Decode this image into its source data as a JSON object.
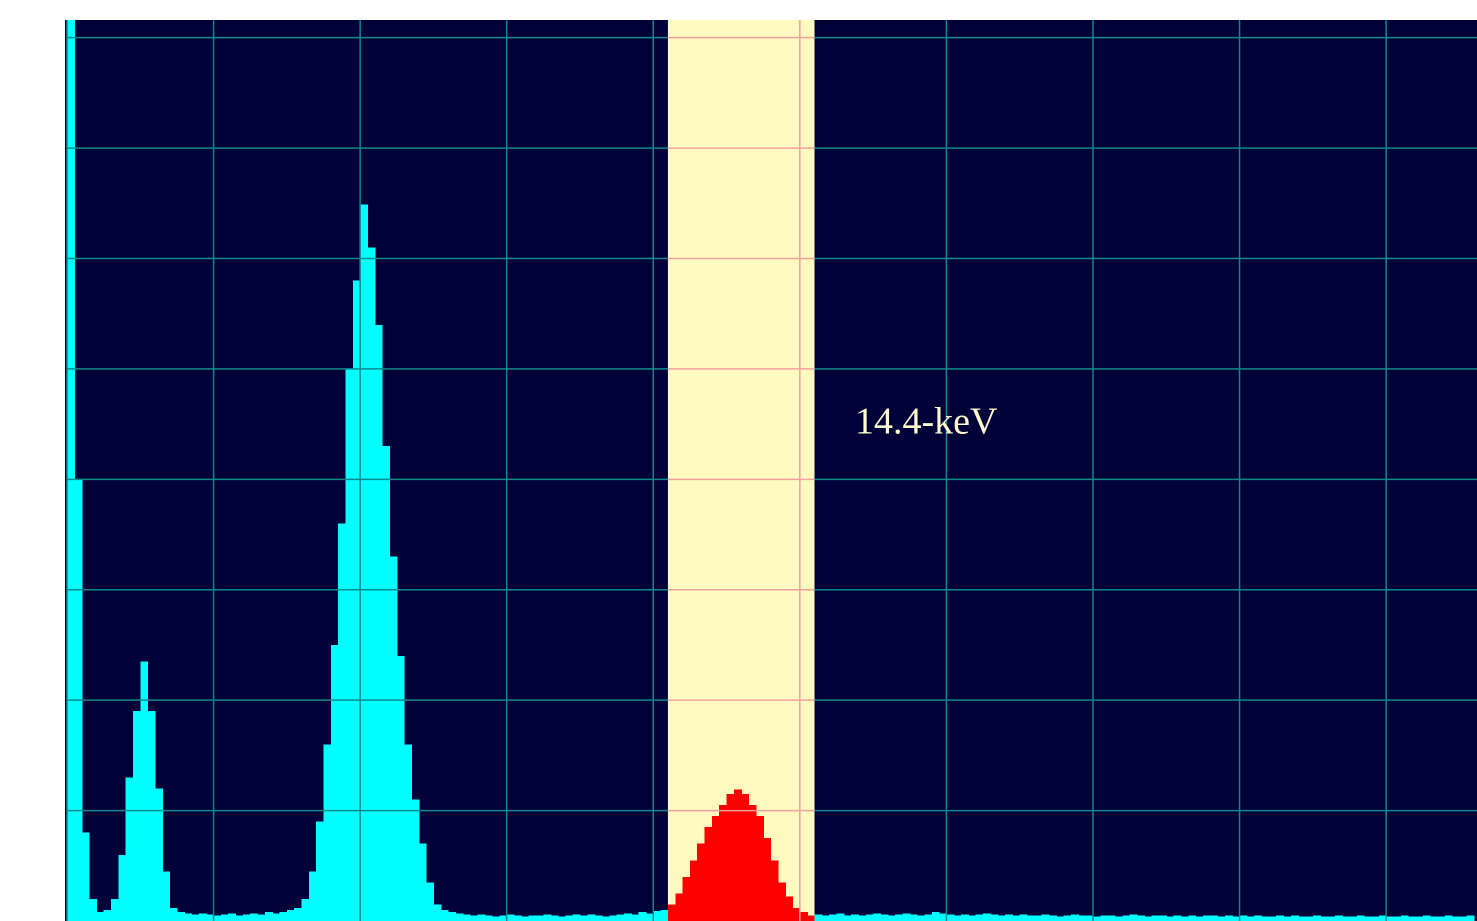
{
  "chart_data": {
    "type": "histogram",
    "bins": [
      0,
      0.05,
      0.1,
      0.15,
      0.2,
      0.25,
      0.3,
      0.35,
      0.4,
      0.45,
      0.5,
      0.55,
      0.6,
      0.65,
      0.7,
      0.75,
      0.8,
      0.85,
      0.9,
      0.95,
      1,
      1.05,
      1.1,
      1.15,
      1.2,
      1.25,
      1.3,
      1.35,
      1.4,
      1.45,
      1.5,
      1.55,
      1.6,
      1.65,
      1.7,
      1.75,
      1.8,
      1.85,
      1.9,
      1.95,
      2,
      2.05,
      2.1,
      2.15,
      2.2,
      2.25,
      2.3,
      2.35,
      2.4,
      2.45,
      2.5,
      2.55,
      2.6,
      2.65,
      2.7,
      2.75,
      2.8,
      2.85,
      2.9,
      2.95,
      3,
      3.05,
      3.1,
      3.15,
      3.2,
      3.25,
      3.3,
      3.35,
      3.4,
      3.45,
      3.5,
      3.55,
      3.6,
      3.65,
      3.7,
      3.75,
      3.8,
      3.85,
      3.9,
      3.95,
      4,
      4.05,
      4.1,
      4.15,
      4.2,
      4.25,
      4.3,
      4.35,
      4.4,
      4.45,
      4.5,
      4.55,
      4.6,
      4.65,
      4.7,
      4.75,
      4.8,
      4.85,
      4.9,
      4.95,
      5,
      5.05,
      5.1,
      5.15,
      5.2,
      5.25,
      5.3,
      5.35,
      5.4,
      5.45,
      5.5,
      5.55,
      5.6,
      5.65,
      5.7,
      5.75,
      5.8,
      5.85,
      5.9,
      5.95,
      6,
      6.05,
      6.1,
      6.15,
      6.2,
      6.25,
      6.3,
      6.35,
      6.4,
      6.45,
      6.5,
      6.55,
      6.6,
      6.65,
      6.7,
      6.75,
      6.8,
      6.85,
      6.9,
      6.95,
      7,
      7.05,
      7.1,
      7.15,
      7.2,
      7.25,
      7.3,
      7.35,
      7.4,
      7.45,
      7.5,
      7.55,
      7.6,
      7.65,
      7.7,
      7.75,
      7.8,
      7.85,
      7.9,
      7.95,
      8,
      8.05,
      8.1,
      8.15,
      8.2,
      8.25,
      8.3,
      8.35,
      8.4,
      8.45,
      8.5,
      8.55,
      8.6,
      8.65,
      8.7,
      8.75,
      8.8,
      8.85,
      8.9,
      8.95,
      9,
      9.05,
      9.1,
      9.15,
      9.2,
      9.25,
      9.3,
      9.35,
      9.4,
      9.45,
      9.5,
      9.55,
      9.6
    ],
    "counts": [
      8.16,
      4.0,
      0.8,
      0.2,
      0.08,
      0.1,
      0.2,
      0.6,
      1.3,
      1.9,
      2.35,
      1.9,
      1.2,
      0.45,
      0.12,
      0.08,
      0.07,
      0.06,
      0.07,
      0.06,
      0.05,
      0.06,
      0.07,
      0.05,
      0.06,
      0.07,
      0.06,
      0.08,
      0.07,
      0.08,
      0.1,
      0.12,
      0.2,
      0.45,
      0.9,
      1.6,
      2.5,
      3.6,
      5.0,
      5.8,
      6.49,
      6.1,
      5.4,
      4.3,
      3.3,
      2.4,
      1.6,
      1.1,
      0.7,
      0.35,
      0.15,
      0.1,
      0.08,
      0.07,
      0.06,
      0.05,
      0.06,
      0.05,
      0.04,
      0.05,
      0.06,
      0.05,
      0.04,
      0.05,
      0.05,
      0.06,
      0.05,
      0.04,
      0.05,
      0.06,
      0.05,
      0.06,
      0.05,
      0.04,
      0.05,
      0.06,
      0.07,
      0.06,
      0.08,
      0.07,
      0.09,
      0.1,
      0.15,
      0.25,
      0.4,
      0.55,
      0.7,
      0.85,
      0.95,
      1.05,
      1.15,
      1.19,
      1.15,
      1.05,
      0.95,
      0.75,
      0.55,
      0.35,
      0.22,
      0.12,
      0.08,
      0.05,
      0.06,
      0.05,
      0.06,
      0.07,
      0.05,
      0.06,
      0.05,
      0.06,
      0.07,
      0.06,
      0.05,
      0.06,
      0.07,
      0.06,
      0.05,
      0.06,
      0.08,
      0.07,
      0.06,
      0.05,
      0.06,
      0.05,
      0.06,
      0.07,
      0.06,
      0.05,
      0.06,
      0.05,
      0.06,
      0.05,
      0.05,
      0.06,
      0.05,
      0.04,
      0.05,
      0.06,
      0.05,
      0.05,
      0.04,
      0.05,
      0.05,
      0.04,
      0.05,
      0.06,
      0.05,
      0.04,
      0.05,
      0.05,
      0.04,
      0.05,
      0.04,
      0.05,
      0.04,
      0.05,
      0.05,
      0.04,
      0.05,
      0.04,
      0.05,
      0.04,
      0.05,
      0.04,
      0.04,
      0.05,
      0.04,
      0.05,
      0.04,
      0.04,
      0.05,
      0.04,
      0.04,
      0.05,
      0.04,
      0.04,
      0.05,
      0.04,
      0.04,
      0.05,
      0.04,
      0.04,
      0.05,
      0.04,
      0.04,
      0.05,
      0.04,
      0.04,
      0.05,
      0.04,
      0.04,
      0.05
    ],
    "color": "#00ffff",
    "background": "#000038",
    "grid": true,
    "grid_color": "#0c8a8a",
    "xlim": [
      0,
      9.62
    ],
    "ylim": [
      0,
      8.16
    ],
    "xticks": [
      0,
      1,
      2,
      3,
      4,
      5,
      6,
      7,
      8,
      9
    ],
    "yticks": [
      1,
      2,
      3,
      4,
      5,
      6,
      7,
      8
    ],
    "highlight": {
      "xlim": [
        4.1,
        5.1
      ],
      "color": "#fffac0",
      "grid_color": "#f4a0a0",
      "bar_color": "#ff0000",
      "label": "14.4-keV",
      "label_color": "#fffacd"
    }
  }
}
